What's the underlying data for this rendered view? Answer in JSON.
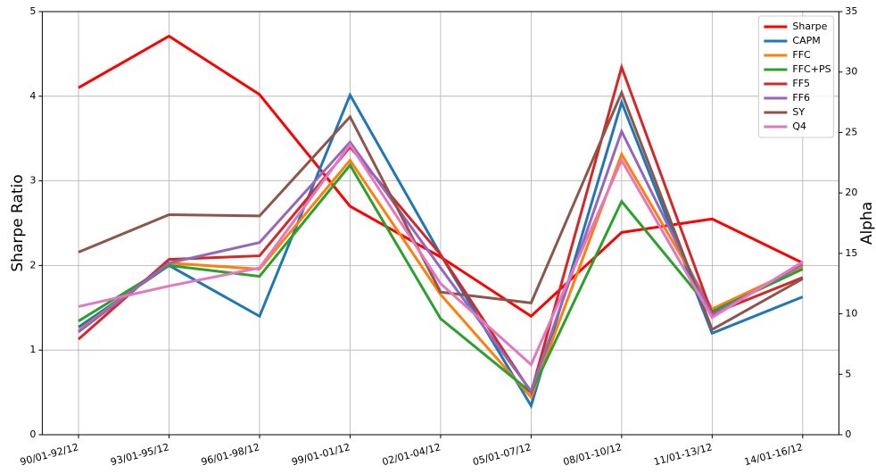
{
  "chart_data": {
    "type": "line",
    "categories": [
      "90/01-92/12",
      "93/01-95/12",
      "96/01-98/12",
      "99/01-01/12",
      "02/01-04/12",
      "05/01-07/12",
      "08/01-10/12",
      "11/01-13/12",
      "14/01-16/12"
    ],
    "y_label": "Sharpe Ratio",
    "y2_label": "Alpha",
    "ylim": [
      0,
      5
    ],
    "yticks": [
      0,
      1,
      2,
      3,
      4,
      5
    ],
    "y2lim": [
      0,
      35
    ],
    "y2ticks": [
      0,
      5,
      10,
      15,
      20,
      25,
      30,
      35
    ],
    "grid": true,
    "legend": "upper right",
    "series": [
      {
        "name": "Sharpe",
        "color": "#ff0000",
        "values": [
          4.1,
          4.71,
          4.02,
          2.7,
          2.1,
          1.4,
          2.39,
          2.55,
          2.03
        ]
      },
      {
        "name": "CAPM",
        "color": "#1f77b4",
        "axis": "y2",
        "values": [
          8.9,
          14.0,
          9.8,
          28.1,
          14.9,
          2.4,
          27.5,
          8.4,
          11.4
        ]
      },
      {
        "name": "FFC",
        "color": "#ff7f0e",
        "axis": "y2",
        "values": [
          8.6,
          14.2,
          13.7,
          22.7,
          11.6,
          3.1,
          23.2,
          10.4,
          13.9
        ]
      },
      {
        "name": "FFC+PS",
        "color": "#2ca02c",
        "axis": "y2",
        "values": [
          9.4,
          14.0,
          13.1,
          22.3,
          9.6,
          3.5,
          19.3,
          10.2,
          13.7
        ]
      },
      {
        "name": "FF5",
        "color": "#d62728",
        "axis": "y2",
        "values": [
          7.9,
          14.5,
          14.8,
          23.8,
          14.9,
          3.5,
          30.4,
          10.0,
          13.0
        ]
      },
      {
        "name": "FF6",
        "color": "#9467bd",
        "axis": "y2",
        "values": [
          8.5,
          14.2,
          15.9,
          24.2,
          13.8,
          3.6,
          25.1,
          9.9,
          14.1
        ]
      },
      {
        "name": "SY",
        "color": "#8c564b",
        "axis": "y2",
        "values": [
          15.1,
          18.2,
          18.1,
          26.3,
          11.8,
          10.9,
          28.3,
          8.7,
          12.9
        ]
      },
      {
        "name": "Q4",
        "color": "#e377c2",
        "axis": "y2",
        "values": [
          10.6,
          12.3,
          13.8,
          24.0,
          12.5,
          5.8,
          22.7,
          9.7,
          14.3
        ]
      }
    ]
  }
}
